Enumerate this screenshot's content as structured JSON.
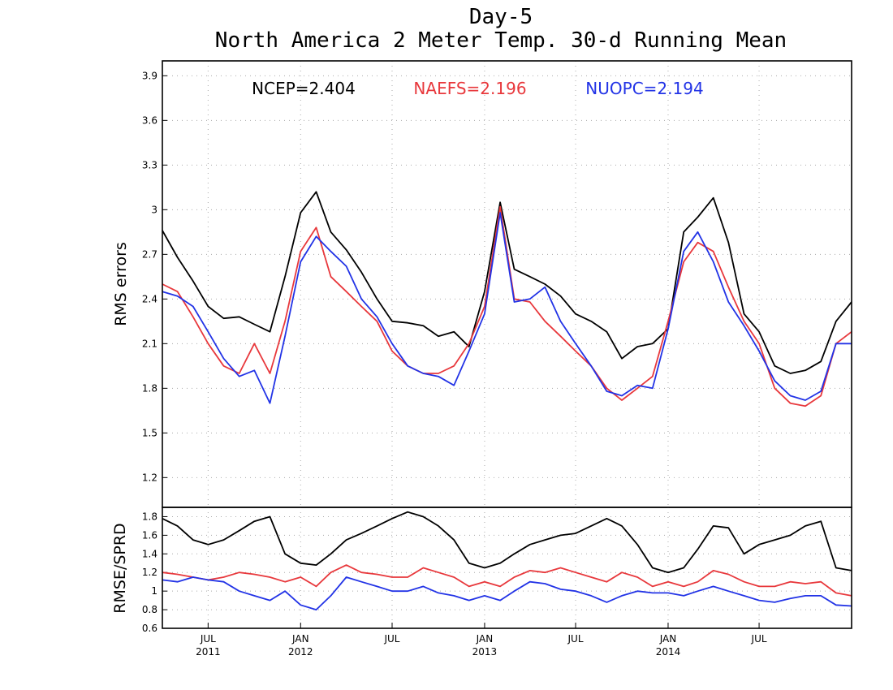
{
  "chart_data": [
    {
      "type": "line",
      "title": "Day-5",
      "subtitle": "North America 2 Meter Temp. 30-d Running Mean",
      "ylabel": "RMS errors",
      "ylim": [
        1.0,
        4.0
      ],
      "yticks": [
        "1.2",
        "1.5",
        "1.8",
        "2.1",
        "2.4",
        "2.7",
        "3",
        "3.3",
        "3.6",
        "3.9"
      ],
      "grid": true,
      "x_range": [
        "2011-04-01",
        "2015-01-01"
      ],
      "x": [
        "2011-04-01",
        "2011-05-01",
        "2011-06-01",
        "2011-07-01",
        "2011-08-01",
        "2011-09-01",
        "2011-10-01",
        "2011-11-01",
        "2011-12-01",
        "2012-01-01",
        "2012-02-01",
        "2012-03-01",
        "2012-04-01",
        "2012-05-01",
        "2012-06-01",
        "2012-07-01",
        "2012-08-01",
        "2012-09-01",
        "2012-10-01",
        "2012-11-01",
        "2012-12-01",
        "2013-01-01",
        "2013-02-01",
        "2013-03-01",
        "2013-04-01",
        "2013-05-01",
        "2013-06-01",
        "2013-07-01",
        "2013-08-01",
        "2013-09-01",
        "2013-10-01",
        "2013-11-01",
        "2013-12-01",
        "2014-01-01",
        "2014-02-01",
        "2014-03-01",
        "2014-04-01",
        "2014-05-01",
        "2014-06-01",
        "2014-07-01",
        "2014-08-01",
        "2014-09-01",
        "2014-10-01",
        "2014-11-01",
        "2014-12-01",
        "2015-01-01"
      ],
      "series": [
        {
          "name": "NCEP",
          "score": "NCEP=2.404",
          "color": "#000000",
          "values": [
            2.86,
            2.68,
            2.52,
            2.35,
            2.27,
            2.28,
            2.23,
            2.18,
            2.55,
            2.98,
            3.12,
            2.85,
            2.73,
            2.58,
            2.4,
            2.25,
            2.24,
            2.22,
            2.15,
            2.18,
            2.08,
            2.45,
            3.05,
            2.6,
            2.55,
            2.5,
            2.42,
            2.3,
            2.25,
            2.18,
            2.0,
            2.08,
            2.1,
            2.2,
            2.85,
            2.95,
            3.08,
            2.78,
            2.3,
            2.18,
            1.95,
            1.9,
            1.92,
            1.98,
            2.25,
            2.38
          ]
        },
        {
          "name": "NAEFS",
          "score": "NAEFS=2.196",
          "color": "#e8383c",
          "values": [
            2.5,
            2.45,
            2.28,
            2.1,
            1.95,
            1.9,
            2.1,
            1.9,
            2.25,
            2.72,
            2.88,
            2.55,
            2.45,
            2.35,
            2.25,
            2.05,
            1.95,
            1.9,
            1.9,
            1.95,
            2.1,
            2.35,
            3.02,
            2.4,
            2.38,
            2.25,
            2.15,
            2.05,
            1.95,
            1.8,
            1.72,
            1.8,
            1.88,
            2.25,
            2.65,
            2.78,
            2.72,
            2.48,
            2.25,
            2.1,
            1.8,
            1.7,
            1.68,
            1.75,
            2.1,
            2.18
          ]
        },
        {
          "name": "NUOPC",
          "score": "NUOPC=2.194",
          "color": "#2233e6",
          "values": [
            2.45,
            2.42,
            2.35,
            2.18,
            2.0,
            1.88,
            1.92,
            1.7,
            2.15,
            2.65,
            2.82,
            2.72,
            2.62,
            2.4,
            2.28,
            2.1,
            1.95,
            1.9,
            1.88,
            1.82,
            2.05,
            2.3,
            2.98,
            2.38,
            2.4,
            2.48,
            2.25,
            2.1,
            1.95,
            1.78,
            1.75,
            1.82,
            1.8,
            2.2,
            2.72,
            2.85,
            2.65,
            2.38,
            2.22,
            2.05,
            1.85,
            1.75,
            1.72,
            1.78,
            2.1,
            2.1
          ]
        }
      ]
    },
    {
      "type": "line",
      "ylabel": "RMSE/SPRD",
      "ylim": [
        0.6,
        1.9
      ],
      "yticks": [
        "0.6",
        "0.8",
        "1",
        "1.2",
        "1.4",
        "1.6",
        "1.8"
      ],
      "grid": true,
      "x_range": [
        "2011-04-01",
        "2015-01-01"
      ],
      "xticks": [
        {
          "date": "2011-07-01",
          "month": "JUL",
          "year": "2011"
        },
        {
          "date": "2012-01-01",
          "month": "JAN",
          "year": "2012"
        },
        {
          "date": "2012-07-01",
          "month": "JUL",
          "year": ""
        },
        {
          "date": "2013-01-01",
          "month": "JAN",
          "year": "2013"
        },
        {
          "date": "2013-07-01",
          "month": "JUL",
          "year": ""
        },
        {
          "date": "2014-01-01",
          "month": "JAN",
          "year": "2014"
        },
        {
          "date": "2014-07-01",
          "month": "JUL",
          "year": ""
        }
      ],
      "x": [
        "2011-04-01",
        "2011-05-01",
        "2011-06-01",
        "2011-07-01",
        "2011-08-01",
        "2011-09-01",
        "2011-10-01",
        "2011-11-01",
        "2011-12-01",
        "2012-01-01",
        "2012-02-01",
        "2012-03-01",
        "2012-04-01",
        "2012-05-01",
        "2012-06-01",
        "2012-07-01",
        "2012-08-01",
        "2012-09-01",
        "2012-10-01",
        "2012-11-01",
        "2012-12-01",
        "2013-01-01",
        "2013-02-01",
        "2013-03-01",
        "2013-04-01",
        "2013-05-01",
        "2013-06-01",
        "2013-07-01",
        "2013-08-01",
        "2013-09-01",
        "2013-10-01",
        "2013-11-01",
        "2013-12-01",
        "2014-01-01",
        "2014-02-01",
        "2014-03-01",
        "2014-04-01",
        "2014-05-01",
        "2014-06-01",
        "2014-07-01",
        "2014-08-01",
        "2014-09-01",
        "2014-10-01",
        "2014-11-01",
        "2014-12-01",
        "2015-01-01"
      ],
      "series": [
        {
          "name": "NCEP",
          "color": "#000000",
          "values": [
            1.78,
            1.7,
            1.55,
            1.5,
            1.55,
            1.65,
            1.75,
            1.8,
            1.4,
            1.3,
            1.28,
            1.4,
            1.55,
            1.62,
            1.7,
            1.78,
            1.85,
            1.8,
            1.7,
            1.55,
            1.3,
            1.25,
            1.3,
            1.4,
            1.5,
            1.55,
            1.6,
            1.62,
            1.7,
            1.78,
            1.7,
            1.5,
            1.25,
            1.2,
            1.25,
            1.45,
            1.7,
            1.68,
            1.4,
            1.5,
            1.55,
            1.6,
            1.7,
            1.75,
            1.25,
            1.22
          ]
        },
        {
          "name": "NAEFS",
          "color": "#e8383c",
          "values": [
            1.2,
            1.18,
            1.15,
            1.12,
            1.15,
            1.2,
            1.18,
            1.15,
            1.1,
            1.15,
            1.05,
            1.2,
            1.28,
            1.2,
            1.18,
            1.15,
            1.15,
            1.25,
            1.2,
            1.15,
            1.05,
            1.1,
            1.05,
            1.15,
            1.22,
            1.2,
            1.25,
            1.2,
            1.15,
            1.1,
            1.2,
            1.15,
            1.05,
            1.1,
            1.05,
            1.1,
            1.22,
            1.18,
            1.1,
            1.05,
            1.05,
            1.1,
            1.08,
            1.1,
            0.98,
            0.95
          ]
        },
        {
          "name": "NUOPC",
          "color": "#2233e6",
          "values": [
            1.12,
            1.1,
            1.15,
            1.12,
            1.1,
            1.0,
            0.95,
            0.9,
            1.0,
            0.85,
            0.8,
            0.95,
            1.15,
            1.1,
            1.05,
            1.0,
            1.0,
            1.05,
            0.98,
            0.95,
            0.9,
            0.95,
            0.9,
            1.0,
            1.1,
            1.08,
            1.02,
            1.0,
            0.95,
            0.88,
            0.95,
            1.0,
            0.98,
            0.98,
            0.95,
            1.0,
            1.05,
            1.0,
            0.95,
            0.9,
            0.88,
            0.92,
            0.95,
            0.95,
            0.85,
            0.84
          ]
        }
      ]
    }
  ]
}
